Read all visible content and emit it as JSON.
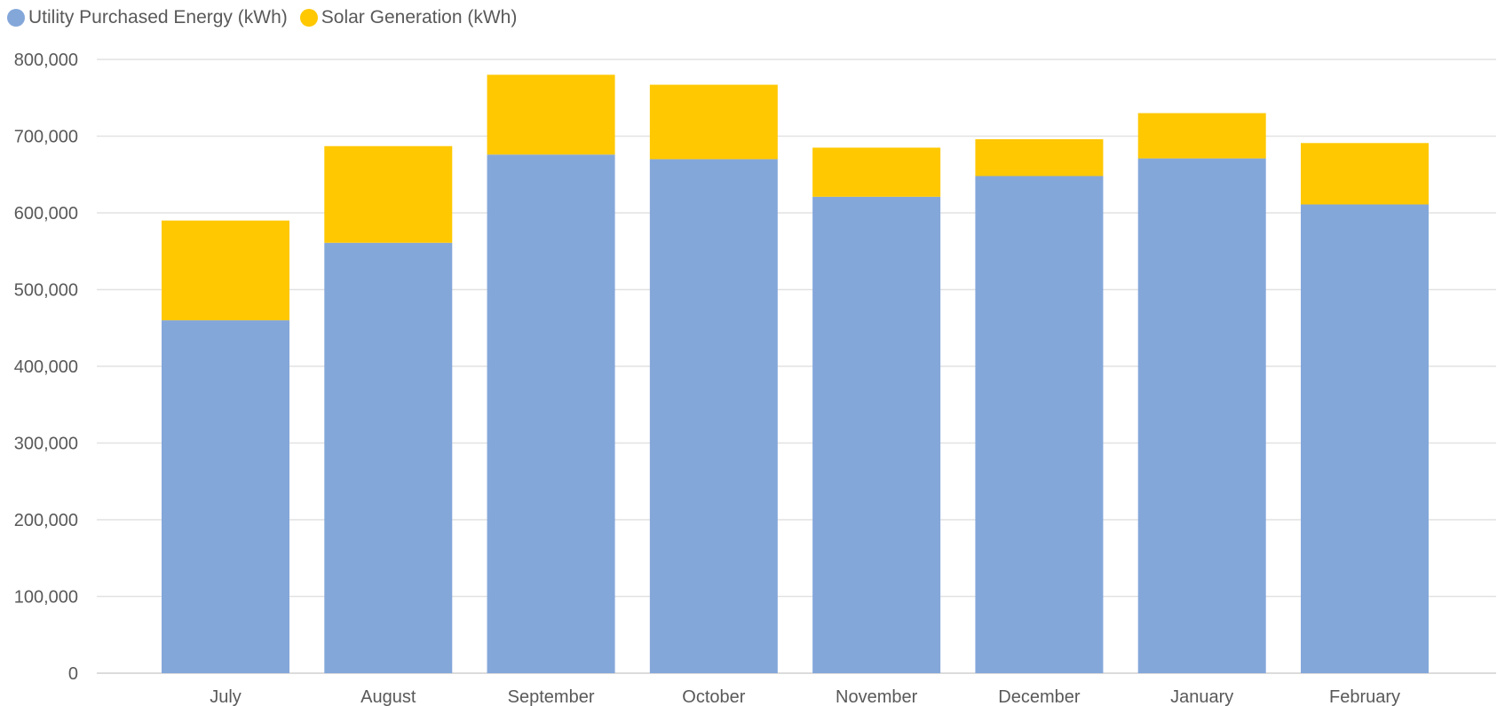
{
  "chart_data": {
    "type": "bar",
    "stacked": true,
    "categories": [
      "July",
      "August",
      "September",
      "October",
      "November",
      "December",
      "January",
      "February"
    ],
    "series": [
      {
        "name": "Utility Purchased Energy (kWh)",
        "color": "#84A7DA",
        "values": [
          460000,
          561000,
          676000,
          670000,
          621000,
          648000,
          671000,
          611000
        ]
      },
      {
        "name": "Solar Generation (kWh)",
        "color": "#FFC800",
        "values": [
          130000,
          126000,
          104000,
          97000,
          64000,
          48000,
          59000,
          80000
        ]
      }
    ],
    "yticks": [
      "0",
      "100,000",
      "200,000",
      "300,000",
      "400,000",
      "500,000",
      "600,000",
      "700,000",
      "800,000"
    ],
    "ylim": [
      0,
      800000
    ],
    "grid": true,
    "legend_position": "top-left",
    "title": "",
    "xlabel": "",
    "ylabel": ""
  }
}
